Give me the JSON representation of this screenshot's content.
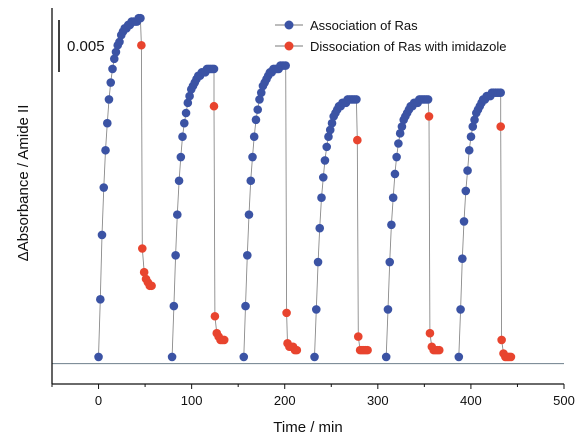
{
  "chart_data": {
    "type": "scatter",
    "xlabel": "Time / min",
    "ylabel": "ΔAbsorbance / Amide II",
    "xlim": [
      -50,
      500
    ],
    "ylim": [
      -0.0006,
      0.0105
    ],
    "x_ticks": [
      "0",
      "100",
      "200",
      "300",
      "400",
      "500"
    ],
    "y_axis_ticks_shown": false,
    "scale_bar_label": "0.005",
    "scale_bar_value": 0.005,
    "baseline_value": 0,
    "grid": false,
    "legend_position": "top-right",
    "colors": {
      "association": "#3b53a4",
      "dissociation": "#e8442e",
      "line": "#8a8a8a"
    },
    "series": [
      {
        "name": "Association of Ras",
        "cycles": [
          {
            "x": [
              0,
              1.9,
              3.7,
              5.6,
              7.5,
              9.4,
              11.2,
              13.1,
              15,
              16.9,
              18.7,
              20.6,
              22.5,
              24.4,
              26.2,
              28.1,
              30,
              31.9,
              33.7,
              35.6,
              37.5,
              39.4,
              41.2,
              43.1,
              45
            ],
            "y": [
              0.0002,
              0.0019,
              0.0038,
              0.0052,
              0.0063,
              0.0071,
              0.0078,
              0.0083,
              0.0087,
              0.009,
              0.0092,
              0.0094,
              0.0095,
              0.0097,
              0.0098,
              0.0099,
              0.0099,
              0.01,
              0.01,
              0.0101,
              0.0101,
              0.0101,
              0.0101,
              0.0102,
              0.0102
            ]
          },
          {
            "x": [
              79,
              80.9,
              82.8,
              84.6,
              86.5,
              88.4,
              90.2,
              92.1,
              94,
              95.9,
              97.8,
              99.6,
              101.5,
              103.4,
              105.2,
              107.1,
              109,
              110.9,
              112.8,
              114.6,
              116.5,
              118.4,
              120.2,
              122.1,
              124
            ],
            "y": [
              0.0002,
              0.0017,
              0.0032,
              0.0044,
              0.0054,
              0.0061,
              0.0067,
              0.0071,
              0.0074,
              0.0077,
              0.0079,
              0.0081,
              0.0082,
              0.0083,
              0.0084,
              0.0085,
              0.0085,
              0.0086,
              0.0086,
              0.0086,
              0.0087,
              0.0087,
              0.0087,
              0.0087,
              0.0087
            ]
          },
          {
            "x": [
              156,
              157.9,
              159.8,
              161.6,
              163.5,
              165.4,
              167.2,
              169.1,
              171,
              172.9,
              174.8,
              176.6,
              178.5,
              180.4,
              182.2,
              184.1,
              186,
              187.9,
              189.8,
              191.6,
              193.5,
              195.4,
              197.2,
              199.1,
              201
            ],
            "y": [
              0.0002,
              0.0017,
              0.0032,
              0.0044,
              0.0054,
              0.0061,
              0.0067,
              0.0072,
              0.0075,
              0.0078,
              0.008,
              0.0082,
              0.0083,
              0.0084,
              0.0085,
              0.0086,
              0.0086,
              0.0087,
              0.0087,
              0.0087,
              0.0087,
              0.0088,
              0.0088,
              0.0088,
              0.0088
            ]
          },
          {
            "x": [
              232,
              233.9,
              235.8,
              237.6,
              239.5,
              241.4,
              243.2,
              245.1,
              247,
              248.9,
              250.8,
              252.6,
              254.5,
              256.4,
              258.2,
              260.1,
              262,
              263.9,
              265.8,
              267.6,
              269.5,
              271.4,
              273.2,
              275.1,
              277
            ],
            "y": [
              0.0002,
              0.0016,
              0.003,
              0.004,
              0.0049,
              0.0055,
              0.006,
              0.0064,
              0.0067,
              0.0069,
              0.0071,
              0.0073,
              0.0074,
              0.0075,
              0.0076,
              0.0076,
              0.0077,
              0.0077,
              0.0077,
              0.0078,
              0.0078,
              0.0078,
              0.0078,
              0.0078,
              0.0078
            ]
          },
          {
            "x": [
              309,
              310.9,
              312.8,
              314.6,
              316.5,
              318.4,
              320.2,
              322.1,
              324,
              325.9,
              327.8,
              329.6,
              331.5,
              333.4,
              335.2,
              337.1,
              339,
              340.9,
              342.8,
              344.6,
              346.5,
              348.4,
              350.2,
              352.1,
              354
            ],
            "y": [
              0.0002,
              0.0016,
              0.003,
              0.0041,
              0.0049,
              0.0056,
              0.0061,
              0.0065,
              0.0068,
              0.007,
              0.0072,
              0.0073,
              0.0074,
              0.0075,
              0.0076,
              0.0076,
              0.0077,
              0.0077,
              0.0077,
              0.0078,
              0.0078,
              0.0078,
              0.0078,
              0.0078,
              0.0078
            ]
          },
          {
            "x": [
              387,
              388.9,
              390.8,
              392.6,
              394.5,
              396.4,
              398.2,
              400.1,
              402,
              403.9,
              405.8,
              407.6,
              409.5,
              411.4,
              413.2,
              415.1,
              417,
              418.9,
              420.8,
              422.6,
              424.5,
              426.4,
              428.2,
              430.1,
              432
            ],
            "y": [
              0.0002,
              0.0016,
              0.0031,
              0.0042,
              0.0051,
              0.0057,
              0.0063,
              0.0067,
              0.007,
              0.0072,
              0.0074,
              0.0075,
              0.0076,
              0.0077,
              0.0078,
              0.0078,
              0.0079,
              0.0079,
              0.0079,
              0.008,
              0.008,
              0.008,
              0.008,
              0.008,
              0.008
            ]
          }
        ]
      },
      {
        "name": "Dissociation of Ras with imidazole",
        "cycles": [
          {
            "x": [
              46,
              47,
              49,
              51,
              53,
              55,
              57
            ],
            "y": [
              0.0094,
              0.0034,
              0.0027,
              0.0025,
              0.0024,
              0.0023,
              0.0023
            ]
          },
          {
            "x": [
              124,
              125,
              127,
              129,
              131,
              133,
              135
            ],
            "y": [
              0.0076,
              0.0014,
              0.0009,
              0.0008,
              0.0007,
              0.0007,
              0.0007
            ]
          },
          {
            "x": [
              202,
              203,
              205,
              207,
              209,
              211,
              213
            ],
            "y": [
              0.0015,
              0.0006,
              0.0005,
              0.0005,
              0.0005,
              0.0004,
              0.0004
            ]
          },
          {
            "x": [
              278,
              279,
              281,
              283,
              285,
              287,
              289
            ],
            "y": [
              0.0066,
              0.0008,
              0.0004,
              0.0004,
              0.0004,
              0.0004,
              0.0004
            ]
          },
          {
            "x": [
              355,
              356,
              358,
              360,
              362,
              364,
              366
            ],
            "y": [
              0.0073,
              0.0009,
              0.0005,
              0.0004,
              0.0004,
              0.0004,
              0.0004
            ]
          },
          {
            "x": [
              432,
              433,
              435,
              437,
              439,
              441,
              443
            ],
            "y": [
              0.007,
              0.0007,
              0.0003,
              0.0002,
              0.0002,
              0.0002,
              0.0002
            ]
          }
        ]
      }
    ]
  }
}
